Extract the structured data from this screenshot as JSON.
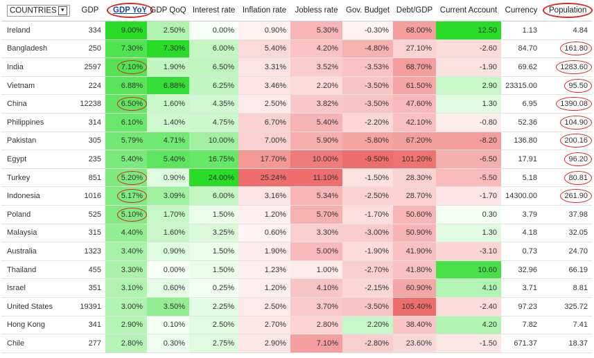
{
  "table": {
    "header": [
      "COUNTRIES",
      "GDP",
      "GDP YoY",
      "GDP QoQ",
      "Interest rate",
      "Inflation rate",
      "Jobless rate",
      "Gov. Budget",
      "Debt/GDP",
      "Current Account",
      "Currency",
      "Population"
    ],
    "rows": [
      [
        "Ireland",
        "334",
        "9.00%",
        "2.50%",
        "0.00%",
        "0.90%",
        "5.30%",
        "-0.30%",
        "68.00%",
        "12.50",
        "1.13",
        "4.84"
      ],
      [
        "Bangladesh",
        "250",
        "7.30%",
        "7.30%",
        "6.00%",
        "5.40%",
        "4.20%",
        "-4.80%",
        "27.10%",
        "-2.60",
        "84.70",
        "161.80"
      ],
      [
        "India",
        "2597",
        "7.10%",
        "1.90%",
        "6.50%",
        "3.31%",
        "3.52%",
        "-3.53%",
        "68.70%",
        "-1.90",
        "69.62",
        "1283.60"
      ],
      [
        "Vietnam",
        "224",
        "6.88%",
        "6.88%",
        "6.25%",
        "3.46%",
        "2.20%",
        "-3.50%",
        "61.50%",
        "2.90",
        "23315.00",
        "95.50"
      ],
      [
        "China",
        "12238",
        "6.50%",
        "1.60%",
        "4.35%",
        "2.50%",
        "3.82%",
        "-3.50%",
        "47.60%",
        "1.30",
        "6.95",
        "1390.08"
      ],
      [
        "Philippines",
        "314",
        "6.10%",
        "1.40%",
        "4.75%",
        "6.70%",
        "5.40%",
        "-2.20%",
        "42.10%",
        "-0.80",
        "52.36",
        "104.90"
      ],
      [
        "Pakistan",
        "305",
        "5.79%",
        "4.71%",
        "10.00%",
        "7.00%",
        "5.90%",
        "-5.80%",
        "67.20%",
        "-8.20",
        "136.80",
        "200.16"
      ],
      [
        "Egypt",
        "235",
        "5.40%",
        "5.40%",
        "16.75%",
        "17.70%",
        "10.00%",
        "-9.50%",
        "101.20%",
        "-6.50",
        "17.91",
        "96.20"
      ],
      [
        "Turkey",
        "851",
        "5.20%",
        "0.90%",
        "24.00%",
        "25.24%",
        "11.10%",
        "-1.50%",
        "28.30%",
        "-5.50",
        "5.18",
        "80.81"
      ],
      [
        "Indonesia",
        "1016",
        "5.17%",
        "3.09%",
        "6.00%",
        "3.16%",
        "5.34%",
        "-2.50%",
        "28.70%",
        "-1.70",
        "14300.00",
        "261.90"
      ],
      [
        "Poland",
        "525",
        "5.10%",
        "1.70%",
        "1.50%",
        "1.20%",
        "5.70%",
        "-1.70%",
        "50.60%",
        "0.30",
        "3.79",
        "37.98"
      ],
      [
        "Malaysia",
        "315",
        "4.40%",
        "1.60%",
        "3.25%",
        "0.60%",
        "3.30%",
        "-3.00%",
        "50.90%",
        "1.30",
        "4.18",
        "32.05"
      ],
      [
        "Australia",
        "1323",
        "3.40%",
        "0.90%",
        "1.50%",
        "1.90%",
        "5.00%",
        "-1.90%",
        "41.90%",
        "-3.10",
        "0.73",
        "24.70"
      ],
      [
        "Thailand",
        "455",
        "3.30%",
        "0.00%",
        "1.50%",
        "1.23%",
        "1.00%",
        "-2.70%",
        "41.80%",
        "10.60",
        "32.96",
        "66.19"
      ],
      [
        "Israel",
        "351",
        "3.10%",
        "0.60%",
        "0.25%",
        "1.20%",
        "4.10%",
        "-2.15%",
        "60.90%",
        "4.10",
        "3.71",
        "8.81"
      ],
      [
        "United States",
        "19391",
        "3.00%",
        "3.50%",
        "2.25%",
        "2.50%",
        "3.70%",
        "-3.50%",
        "105.40%",
        "-2.40",
        "97.23",
        "325.72"
      ],
      [
        "Hong Kong",
        "341",
        "2.90%",
        "0.10%",
        "2.50%",
        "2.70%",
        "2.80%",
        "2.20%",
        "38.40%",
        "4.20",
        "7.82",
        "7.41"
      ],
      [
        "Chile",
        "277",
        "2.80%",
        "0.30%",
        "2.75%",
        "2.90%",
        "7.10%",
        "-2.80%",
        "23.60%",
        "-1.50",
        "671.37",
        "18.37"
      ]
    ]
  }
}
